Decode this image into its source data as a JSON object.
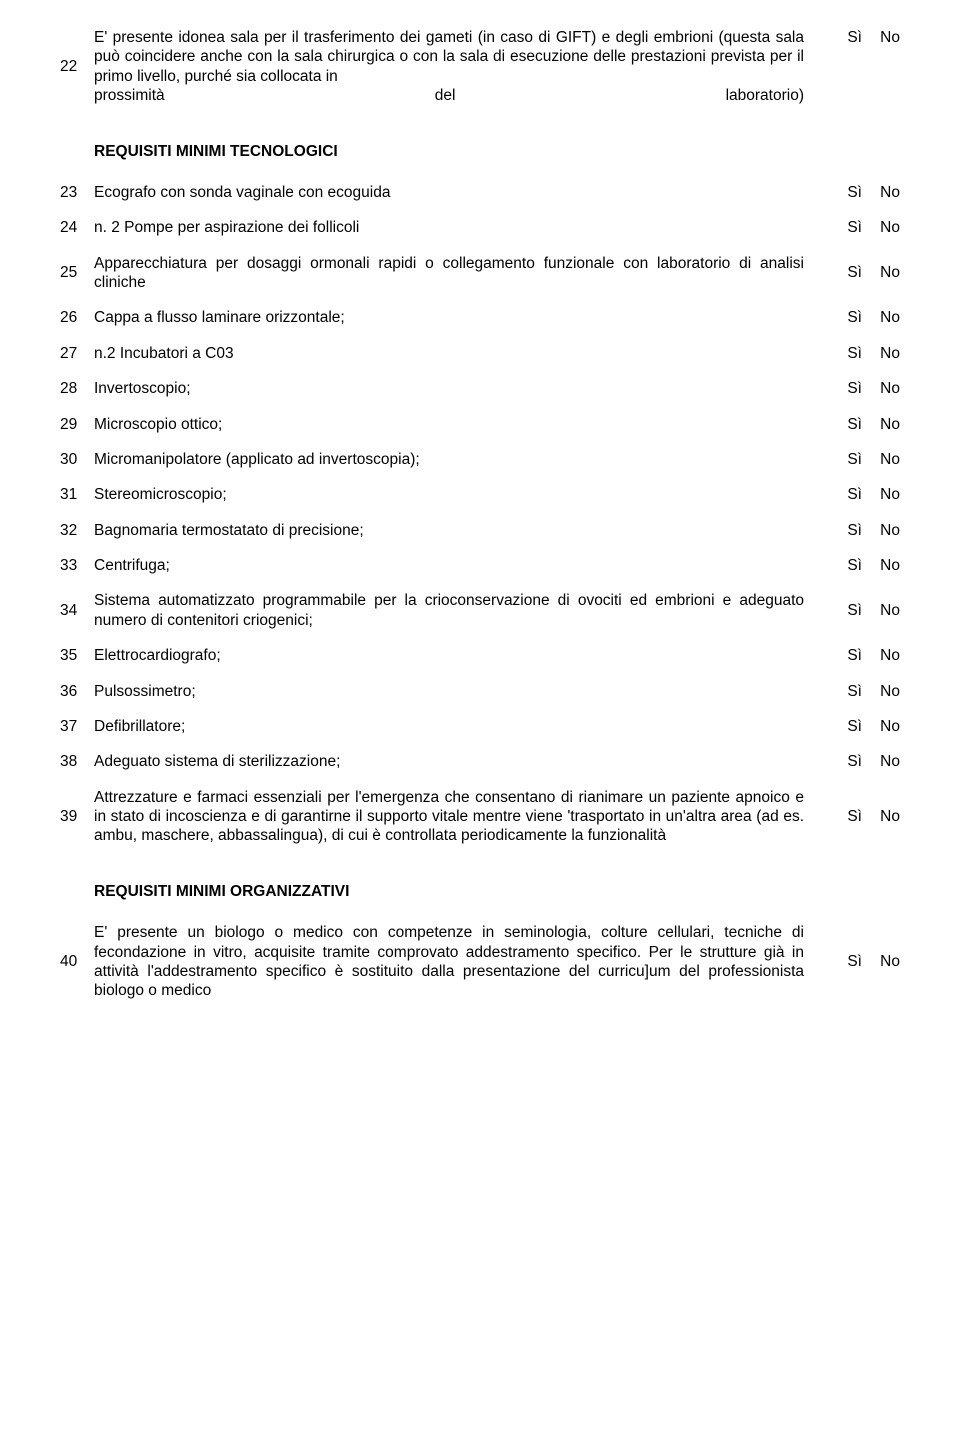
{
  "labels": {
    "si": "Sì",
    "no": "No"
  },
  "item22": {
    "num": "22",
    "text_part1": "E' presente idonea sala per il trasferimento dei gameti (in caso di GIFT) e degli embrioni (questa sala può coincidere anche con la sala chirurgica o con la sala di esecuzione delle prestazioni prevista per il primo livello, purché sia collocata in",
    "last_left": "prossimità",
    "last_mid": "del",
    "last_right": "laboratorio)"
  },
  "section1": {
    "title": "REQUISITI MINIMI TECNOLOGICI",
    "rows": [
      {
        "num": "23",
        "text": "Ecografo con sonda vaginale con ecoguida"
      },
      {
        "num": "24",
        "text": "n. 2 Pompe per aspirazione dei follicoli"
      },
      {
        "num": "25",
        "text": "Apparecchiatura per dosaggi ormonali rapidi o collegamento funzionale con laboratorio di analisi cliniche",
        "multiline": true
      },
      {
        "num": "26",
        "text": "Cappa a flusso laminare orizzontale;"
      },
      {
        "num": "27",
        "text": "n.2 Incubatori a C03"
      },
      {
        "num": "28",
        "text": "Invertoscopio;"
      },
      {
        "num": "29",
        "text": "Microscopio ottico;"
      },
      {
        "num": "30",
        "text": "Micromanipolatore (applicato ad invertoscopia);"
      },
      {
        "num": "31",
        "text": "Stereomicroscopio;"
      },
      {
        "num": "32",
        "text": "Bagnomaria termostatato di precisione;"
      },
      {
        "num": "33",
        "text": "Centrifuga;"
      },
      {
        "num": "34",
        "text": "Sistema automatizzato programmabile per la crioconservazione di ovociti ed embrioni e adeguato numero di contenitori criogenici;",
        "multiline": true
      },
      {
        "num": "35",
        "text": "Elettrocardiografo;"
      },
      {
        "num": "36",
        "text": "Pulsossimetro;"
      },
      {
        "num": "37",
        "text": "Defibrillatore;"
      },
      {
        "num": "38",
        "text": "Adeguato sistema di sterilizzazione;"
      },
      {
        "num": "39",
        "text": "Attrezzature e farmaci essenziali per l'emergenza che consentano di rianimare un paziente apnoico e in stato di incoscienza e di garantirne il supporto vitale mentre viene 'trasportato in un'altra area (ad es. ambu, maschere, abbassalingua), di cui è controllata periodicamente la funzionalità",
        "multiline": true
      }
    ]
  },
  "section2": {
    "title": "REQUISITI MINIMI ORGANIZZATIVI",
    "rows": [
      {
        "num": "40",
        "text": "E' presente un biologo o medico con competenze in seminologia, colture cellulari, tecniche di fecondazione in vitro, acquisite tramite comprovato addestramento specifico. Per le strutture già in attività l'addestramento specifico è sostituito dalla presentazione del curricu]um del professionista biologo o medico",
        "multiline": true
      }
    ]
  }
}
